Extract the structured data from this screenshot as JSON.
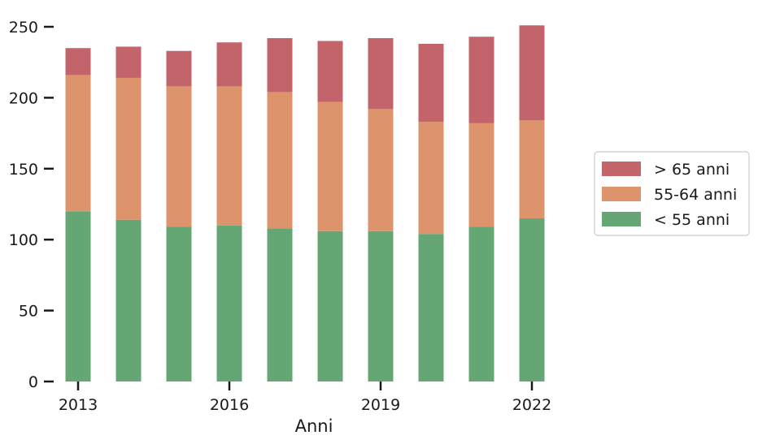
{
  "chart_data": {
    "type": "bar",
    "stacked": true,
    "categories": [
      2013,
      2014,
      2015,
      2016,
      2017,
      2018,
      2019,
      2020,
      2021,
      2022
    ],
    "x_tick_labels": [
      "2013",
      "2016",
      "2019",
      "2022"
    ],
    "x_tick_values": [
      2013,
      2016,
      2019,
      2022
    ],
    "y_ticks": [
      0,
      50,
      100,
      150,
      200,
      250
    ],
    "ylim": [
      0,
      250
    ],
    "xlabel": "Anni",
    "ylabel": "",
    "title": "",
    "grid": false,
    "legend_position": "right",
    "series": [
      {
        "name": "< 55 anni",
        "color": "#65a774",
        "values": [
          120,
          114,
          109,
          110,
          108,
          106,
          106,
          104,
          109,
          115
        ]
      },
      {
        "name": "55-64 anni",
        "color": "#dd946d",
        "values": [
          96,
          100,
          99,
          98,
          96,
          91,
          86,
          79,
          73,
          69
        ]
      },
      {
        "name": "> 65 anni",
        "color": "#c2646a",
        "values": [
          19,
          22,
          25,
          31,
          38,
          43,
          50,
          55,
          61,
          67
        ]
      }
    ],
    "legend_order": [
      "> 65 anni",
      "55-64 anni",
      "< 55 anni"
    ]
  }
}
